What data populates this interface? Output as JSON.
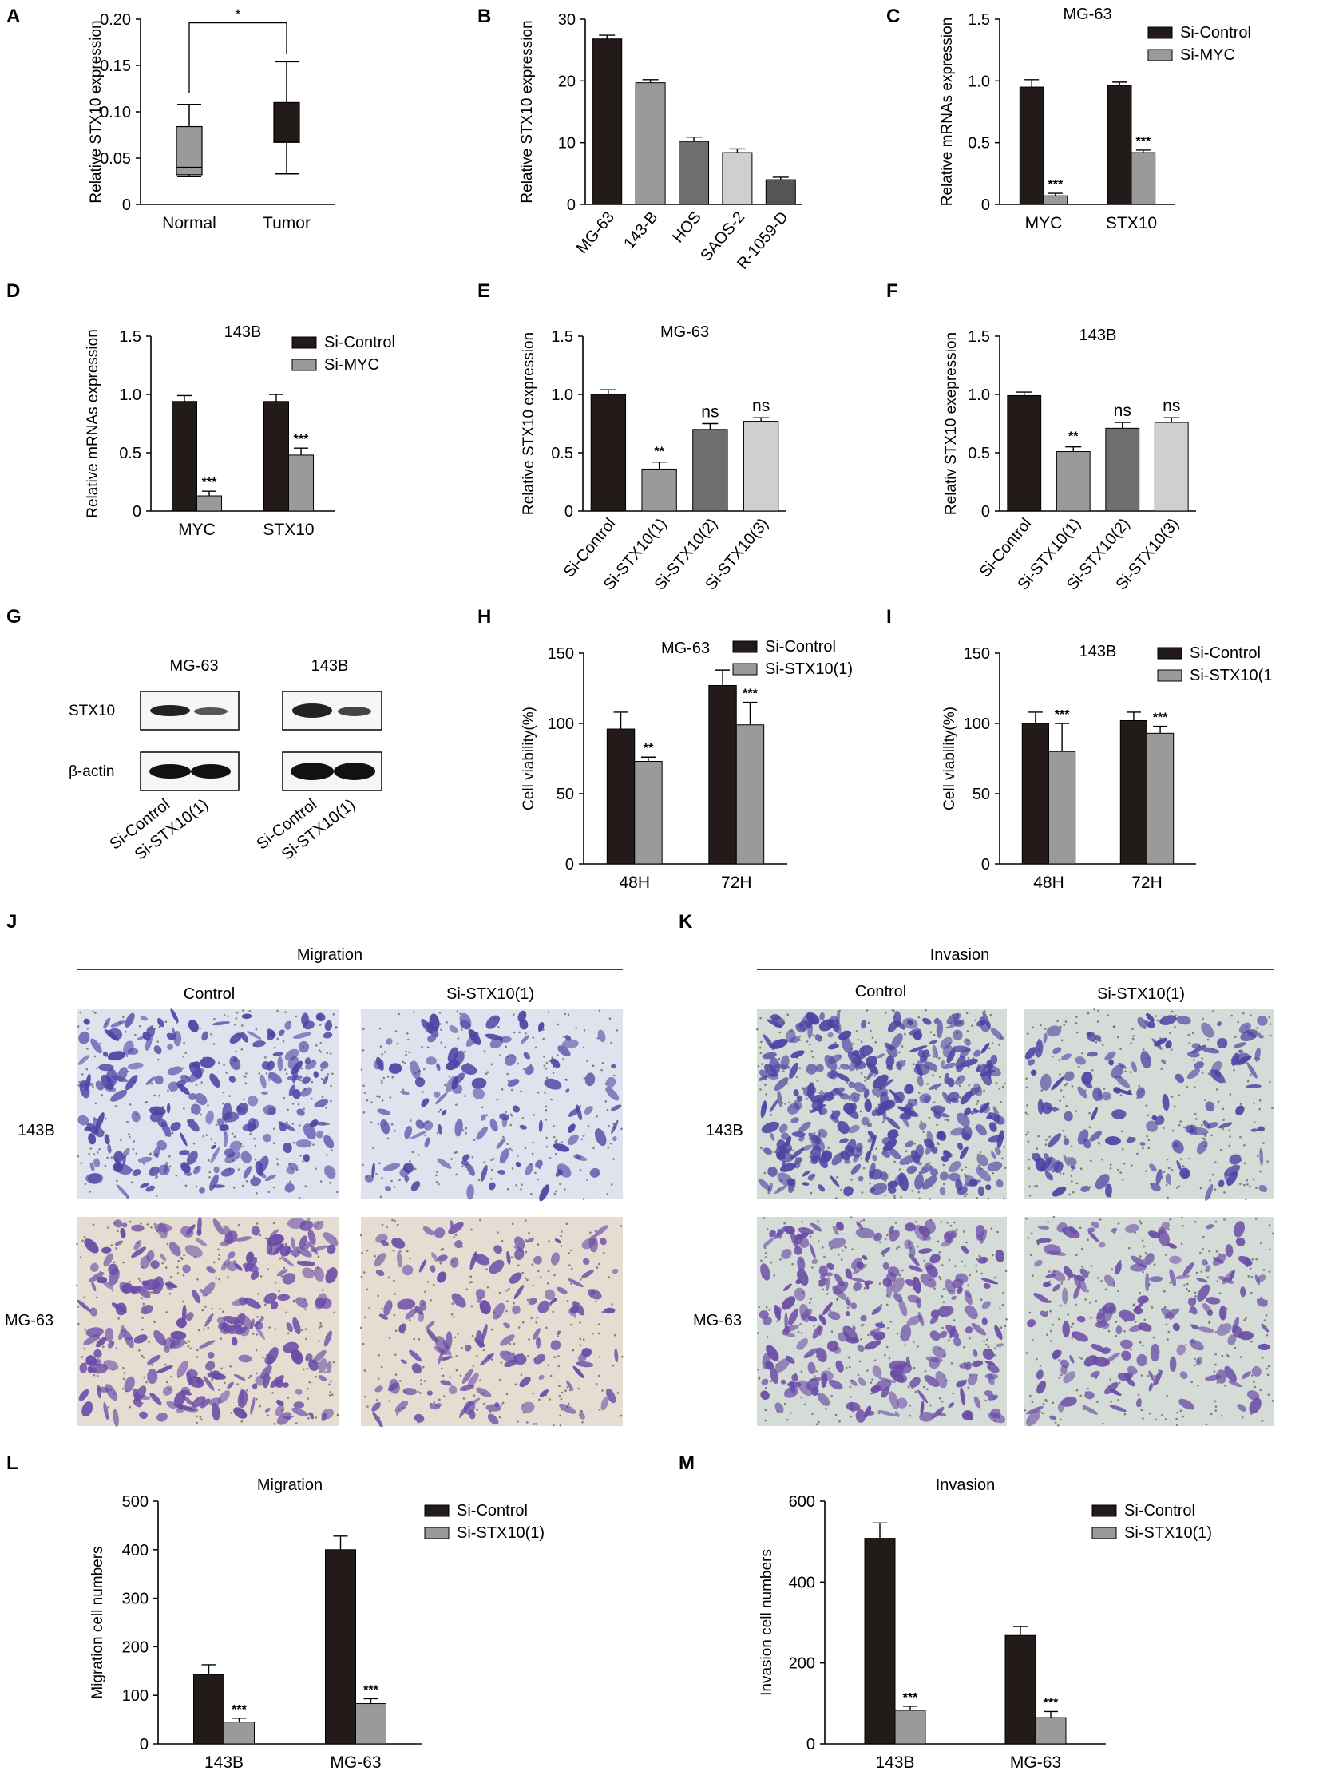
{
  "colors": {
    "control": "#231a1a",
    "treatment": "#9a9a9a",
    "axis": "#000000",
    "stain_blue": "#4b43a3",
    "stain_purple": "#6a4aa6",
    "bg_143b_mig": "#e0e2ee",
    "bg_mg63_mig": "#e6ddd2",
    "bg_inv": "#d5dbd6"
  },
  "chart_data": [
    {
      "panel": "A",
      "type": "box",
      "title": "",
      "ylabel": "Relative STX10 expression",
      "ylim": [
        0,
        0.2
      ],
      "yticks": [
        "0",
        "0.05",
        "0.10",
        "0.15",
        "0.20"
      ],
      "categories": [
        "Normal",
        "Tumor"
      ],
      "boxes": [
        {
          "min": 0.03,
          "q1": 0.032,
          "median": 0.04,
          "q3": 0.084,
          "max": 0.108
        },
        {
          "min": 0.033,
          "q1": 0.067,
          "median": 0.068,
          "q3": 0.11,
          "max": 0.154
        }
      ],
      "significance": "*"
    },
    {
      "panel": "B",
      "type": "bar",
      "title": "",
      "ylabel": "Relative STX10 expression",
      "ylim": [
        0,
        30
      ],
      "yticks": [
        "0",
        "10",
        "20",
        "30"
      ],
      "categories": [
        "MG-63",
        "143-B",
        "HOS",
        "SAOS-2",
        "R-1059-D"
      ],
      "values": [
        26.8,
        19.7,
        10.2,
        8.4,
        4.0
      ],
      "errors": [
        0.6,
        0.5,
        0.7,
        0.6,
        0.4
      ],
      "bar_colors": [
        "#231a1a",
        "#9a9a9a",
        "#6e6e6e",
        "#cfcfcf",
        "#555555"
      ]
    },
    {
      "panel": "C",
      "type": "bar",
      "title": "MG-63",
      "ylabel": "Relative mRNAs expression",
      "ylim": [
        0,
        1.5
      ],
      "yticks": [
        "0",
        "0.5",
        "1.0",
        "1.5"
      ],
      "categories": [
        "MYC",
        "STX10"
      ],
      "series": [
        {
          "name": "Si-Control",
          "values": [
            0.95,
            0.96
          ],
          "errors": [
            0.06,
            0.03
          ],
          "sig": [
            "",
            ""
          ]
        },
        {
          "name": "Si-MYC",
          "values": [
            0.07,
            0.42
          ],
          "errors": [
            0.02,
            0.02
          ],
          "sig": [
            "***",
            "***"
          ]
        }
      ]
    },
    {
      "panel": "D",
      "type": "bar",
      "title": "143B",
      "ylabel": "Relative mRNAs expression",
      "ylim": [
        0,
        1.5
      ],
      "yticks": [
        "0",
        "0.5",
        "1.0",
        "1.5"
      ],
      "categories": [
        "MYC",
        "STX10"
      ],
      "series": [
        {
          "name": "Si-Control",
          "values": [
            0.94,
            0.94
          ],
          "errors": [
            0.05,
            0.06
          ],
          "sig": [
            "",
            ""
          ]
        },
        {
          "name": "Si-MYC",
          "values": [
            0.13,
            0.48
          ],
          "errors": [
            0.04,
            0.06
          ],
          "sig": [
            "***",
            "***"
          ]
        }
      ]
    },
    {
      "panel": "E",
      "type": "bar",
      "title": "MG-63",
      "ylabel": "Relative STX10 expression",
      "ylim": [
        0,
        1.5
      ],
      "yticks": [
        "0",
        "0.5",
        "1.0",
        "1.5"
      ],
      "categories": [
        "Si-Control",
        "Si-STX10(1)",
        "Si-STX10(2)",
        "Si-STX10(3)"
      ],
      "values": [
        1.0,
        0.36,
        0.7,
        0.77
      ],
      "errors": [
        0.04,
        0.06,
        0.05,
        0.03
      ],
      "sig": [
        "",
        "**",
        "ns",
        "ns"
      ],
      "bar_colors": [
        "#231a1a",
        "#9a9a9a",
        "#6e6e6e",
        "#cfcfcf"
      ]
    },
    {
      "panel": "F",
      "type": "bar",
      "title": "143B",
      "ylabel": "Relativ STX10 exepression",
      "ylim": [
        0,
        1.5
      ],
      "yticks": [
        "0",
        "0.5",
        "1.0",
        "1.5"
      ],
      "categories": [
        "Si-Control",
        "Si-STX10(1)",
        "Si-STX10(2)",
        "Si-STX10(3)"
      ],
      "values": [
        0.99,
        0.51,
        0.71,
        0.76
      ],
      "errors": [
        0.03,
        0.04,
        0.05,
        0.04
      ],
      "sig": [
        "",
        "**",
        "ns",
        "ns"
      ],
      "bar_colors": [
        "#231a1a",
        "#9a9a9a",
        "#6e6e6e",
        "#cfcfcf"
      ]
    },
    {
      "panel": "H",
      "type": "bar",
      "title": "MG-63",
      "ylabel": "Cell viability(%)",
      "ylim": [
        0,
        150
      ],
      "yticks": [
        "0",
        "50",
        "100",
        "150"
      ],
      "categories": [
        "48H",
        "72H"
      ],
      "series": [
        {
          "name": "Si-Control",
          "values": [
            96,
            127
          ],
          "errors": [
            12,
            11
          ],
          "sig": [
            "",
            ""
          ]
        },
        {
          "name": "Si-STX10(1)",
          "values": [
            73,
            99
          ],
          "errors": [
            3,
            16
          ],
          "sig": [
            "**",
            "***"
          ]
        }
      ]
    },
    {
      "panel": "I",
      "type": "bar",
      "title": "143B",
      "ylabel": "Cell viability(%)",
      "ylim": [
        0,
        150
      ],
      "yticks": [
        "0",
        "50",
        "100",
        "150"
      ],
      "categories": [
        "48H",
        "72H"
      ],
      "series": [
        {
          "name": "Si-Control",
          "values": [
            100,
            102
          ],
          "errors": [
            8,
            6
          ],
          "sig": [
            "",
            ""
          ]
        },
        {
          "name": "Si-STX10(1",
          "values": [
            80,
            93
          ],
          "errors": [
            20,
            5
          ],
          "sig": [
            "***",
            "***"
          ]
        }
      ]
    },
    {
      "panel": "L",
      "type": "bar",
      "title": "Migration",
      "ylabel": "Migration cell numbers",
      "ylim": [
        0,
        500
      ],
      "yticks": [
        "0",
        "100",
        "200",
        "300",
        "400",
        "500"
      ],
      "categories": [
        "143B",
        "MG-63"
      ],
      "series": [
        {
          "name": "Si-Control",
          "values": [
            143,
            400
          ],
          "errors": [
            20,
            28
          ],
          "sig": [
            "",
            ""
          ]
        },
        {
          "name": "Si-STX10(1)",
          "values": [
            45,
            83
          ],
          "errors": [
            8,
            10
          ],
          "sig": [
            "***",
            "***"
          ]
        }
      ]
    },
    {
      "panel": "M",
      "type": "bar",
      "title": "Invasion",
      "ylabel": "Invasion cell numbers",
      "ylim": [
        0,
        600
      ],
      "yticks": [
        "0",
        "200",
        "400",
        "600"
      ],
      "categories": [
        "143B",
        "MG-63"
      ],
      "series": [
        {
          "name": "Si-Control",
          "values": [
            508,
            268
          ],
          "errors": [
            38,
            22
          ],
          "sig": [
            "",
            ""
          ]
        },
        {
          "name": "Si-STX10(1)",
          "values": [
            83,
            65
          ],
          "errors": [
            10,
            15
          ],
          "sig": [
            "***",
            "***"
          ]
        }
      ]
    }
  ],
  "panels": {
    "labels": [
      "A",
      "B",
      "C",
      "D",
      "E",
      "F",
      "G",
      "H",
      "I",
      "J",
      "K",
      "L",
      "M"
    ]
  },
  "western_blot": {
    "label": "G",
    "cell_lines": [
      "MG-63",
      "143B"
    ],
    "proteins": [
      "STX10",
      "β-actin"
    ],
    "lanes": [
      "Si-Control",
      "Si-STX10(1)"
    ]
  },
  "transwell": {
    "migration": {
      "label": "J",
      "title": "Migration",
      "columns": [
        "Control",
        "Si-STX10(1)"
      ],
      "rows": [
        "143B",
        "MG-63"
      ]
    },
    "invasion": {
      "label": "K",
      "title": "Invasion",
      "columns": [
        "Control",
        "Si-STX10(1)"
      ],
      "rows": [
        "143B",
        "MG-63"
      ]
    }
  }
}
